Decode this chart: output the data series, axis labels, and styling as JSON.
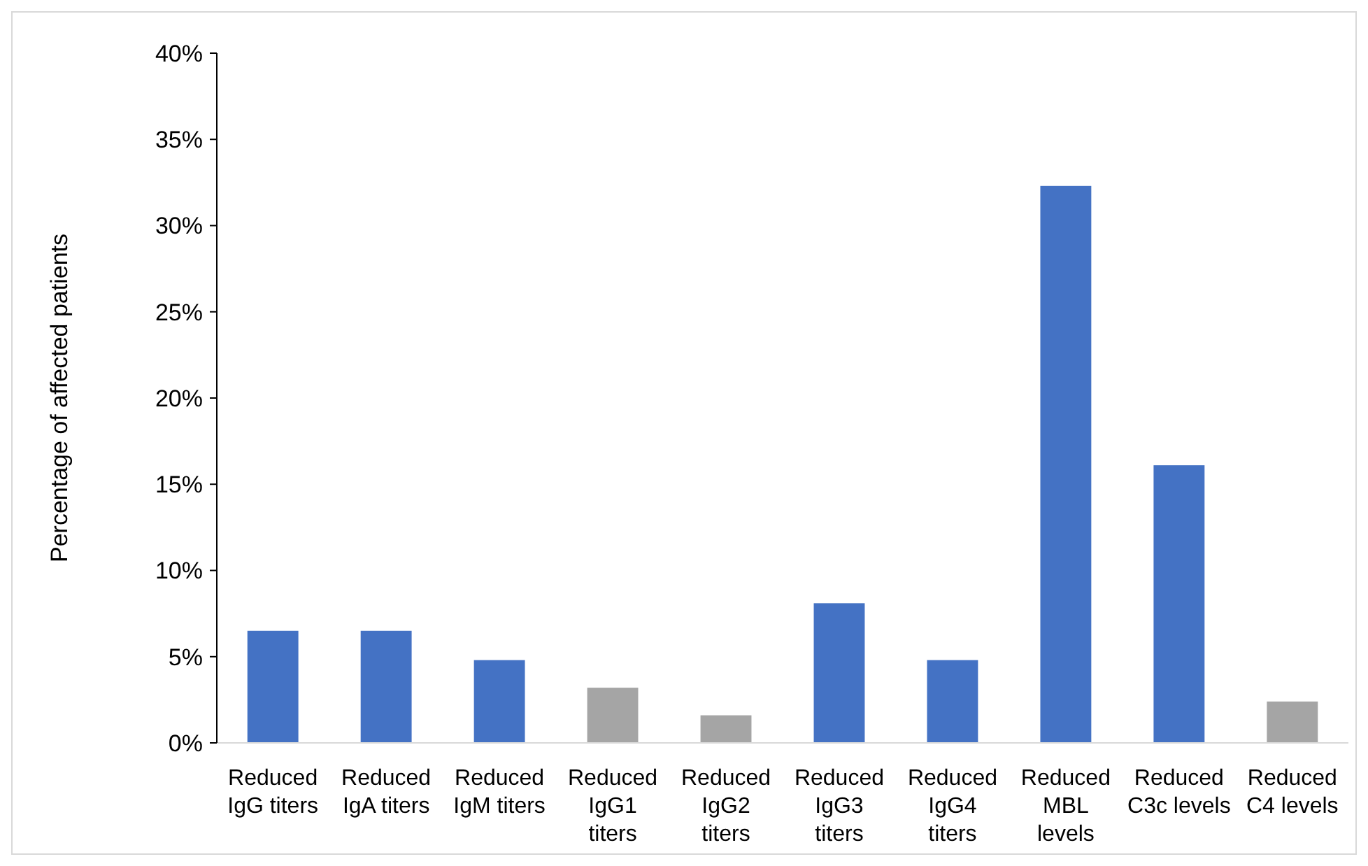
{
  "chart_data": {
    "type": "bar",
    "ylabel": "Percentage of affected patients",
    "categories": [
      "Reduced\nIgG titers",
      "Reduced\nIgA titers",
      "Reduced\nIgM titers",
      "Reduced\nIgG1\ntiters",
      "Reduced\nIgG2\ntiters",
      "Reduced\nIgG3\ntiters",
      "Reduced\nIgG4\ntiters",
      "Reduced\nMBL\nlevels",
      "Reduced\nC3c levels",
      "Reduced\nC4 levels"
    ],
    "values": [
      6.5,
      6.5,
      4.8,
      3.2,
      1.6,
      8.1,
      4.8,
      32.3,
      16.1,
      2.4
    ],
    "colors": [
      "#4472c4",
      "#4472c4",
      "#4472c4",
      "#a5a5a5",
      "#a5a5a5",
      "#4472c4",
      "#4472c4",
      "#4472c4",
      "#4472c4",
      "#a5a5a5"
    ],
    "ylim": [
      0,
      40
    ],
    "yticks": [
      {
        "value": 0,
        "label": "0%"
      },
      {
        "value": 5,
        "label": "5%"
      },
      {
        "value": 10,
        "label": "10%"
      },
      {
        "value": 15,
        "label": "15%"
      },
      {
        "value": 20,
        "label": "20%"
      },
      {
        "value": 25,
        "label": "25%"
      },
      {
        "value": 30,
        "label": "30%"
      },
      {
        "value": 35,
        "label": "35%"
      },
      {
        "value": 40,
        "label": "40%"
      }
    ],
    "grid": false
  }
}
